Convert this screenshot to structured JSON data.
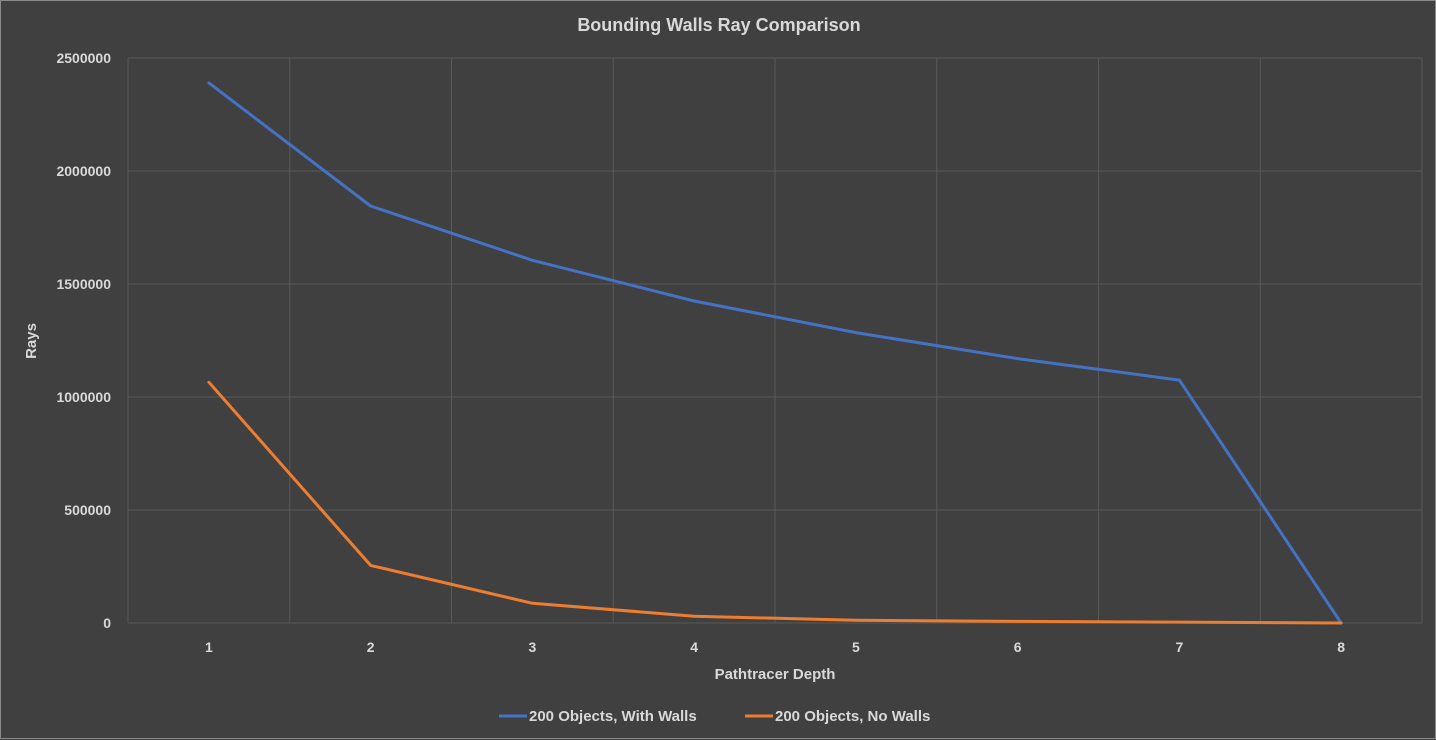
{
  "chart_data": {
    "type": "line",
    "title": "Bounding Walls Ray Comparison",
    "xlabel": "Pathtracer Depth",
    "ylabel": "Rays",
    "categories": [
      "1",
      "2",
      "3",
      "4",
      "5",
      "6",
      "7",
      "8"
    ],
    "ylim": [
      0,
      2500000
    ],
    "yticks": [
      "0",
      "500000",
      "1000000",
      "1500000",
      "2000000",
      "2500000"
    ],
    "grid": true,
    "legend": "bottom",
    "series": [
      {
        "name": "200 Objects, With Walls",
        "color": "#4472c4",
        "values": [
          2390000,
          1845000,
          1605000,
          1425000,
          1285000,
          1170000,
          1075000,
          0
        ]
      },
      {
        "name": "200 Objects, No Walls",
        "color": "#ed7d31",
        "values": [
          1065000,
          255000,
          87000,
          30000,
          12000,
          7000,
          4000,
          0
        ]
      }
    ]
  }
}
